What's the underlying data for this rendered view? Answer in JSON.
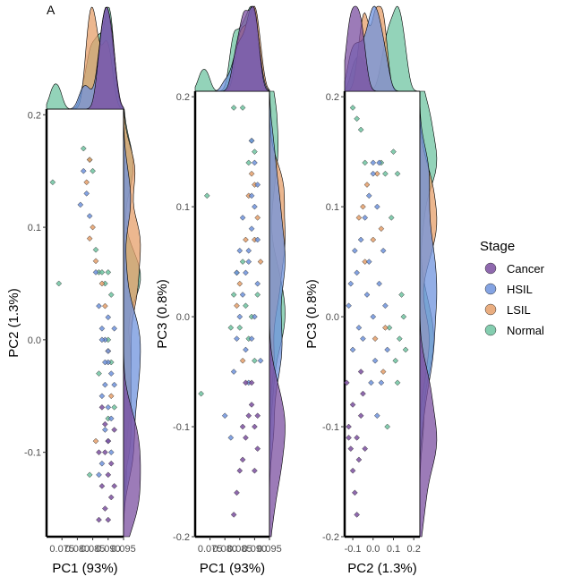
{
  "panel_tag": "A",
  "colors": {
    "Cancer": "#7b4fa0",
    "HSIL": "#6f93dd",
    "LSIL": "#e59f6a",
    "Normal": "#6fc4a1"
  },
  "legend": {
    "title": "Stage",
    "items": [
      "Cancer",
      "HSIL",
      "LSIL",
      "Normal"
    ]
  },
  "chart_data": [
    {
      "type": "scatter",
      "xlabel": "PC1 (93%)",
      "ylabel": "PC2 (1.3%)",
      "xlim": [
        0.07,
        0.095
      ],
      "ylim": [
        -0.175,
        0.205
      ],
      "xtick_labels": [
        "0.075",
        "0.080",
        "0.085",
        "0.090",
        "0.095"
      ],
      "xtick_values": [
        0.075,
        0.08,
        0.085,
        0.09,
        0.095
      ],
      "yticks": [
        -0.1,
        0.0,
        0.1,
        0.2
      ],
      "series": [
        {
          "name": "Cancer",
          "points": [
            [
              0.088,
              -0.06
            ],
            [
              0.089,
              -0.075
            ],
            [
              0.09,
              -0.09
            ],
            [
              0.091,
              -0.11
            ],
            [
              0.092,
              -0.13
            ],
            [
              0.089,
              -0.15
            ],
            [
              0.087,
              -0.16
            ],
            [
              0.09,
              -0.12
            ],
            [
              0.091,
              -0.14
            ],
            [
              0.092,
              -0.08
            ],
            [
              0.087,
              -0.1
            ],
            [
              0.088,
              -0.13
            ],
            [
              0.09,
              -0.16
            ],
            [
              0.089,
              -0.1
            ]
          ]
        },
        {
          "name": "HSIL",
          "points": [
            [
              0.082,
              0.15
            ],
            [
              0.083,
              0.13
            ],
            [
              0.081,
              0.12
            ],
            [
              0.084,
              0.11
            ],
            [
              0.086,
              0.06
            ],
            [
              0.087,
              0.03
            ],
            [
              0.088,
              0.01
            ],
            [
              0.089,
              0.0
            ],
            [
              0.09,
              -0.01
            ],
            [
              0.09,
              -0.02
            ],
            [
              0.091,
              -0.03
            ],
            [
              0.089,
              -0.04
            ],
            [
              0.088,
              -0.05
            ],
            [
              0.09,
              -0.06
            ],
            [
              0.091,
              -0.07
            ],
            [
              0.092,
              -0.04
            ],
            [
              0.089,
              -0.08
            ],
            [
              0.09,
              -0.09
            ],
            [
              0.088,
              -0.11
            ],
            [
              0.087,
              -0.12
            ],
            [
              0.091,
              -0.1
            ],
            [
              0.09,
              0.02
            ],
            [
              0.089,
              -0.02
            ],
            [
              0.088,
              0.0
            ],
            [
              0.092,
              0.01
            ]
          ]
        },
        {
          "name": "LSIL",
          "points": [
            [
              0.084,
              0.16
            ],
            [
              0.083,
              0.14
            ],
            [
              0.085,
              0.1
            ],
            [
              0.086,
              0.07
            ],
            [
              0.088,
              0.05
            ],
            [
              0.089,
              0.03
            ],
            [
              0.09,
              -0.01
            ],
            [
              0.091,
              -0.05
            ],
            [
              0.086,
              -0.09
            ],
            [
              0.084,
              0.09
            ]
          ]
        },
        {
          "name": "Normal",
          "points": [
            [
              0.072,
              0.14
            ],
            [
              0.074,
              0.05
            ],
            [
              0.082,
              0.17
            ],
            [
              0.084,
              0.16
            ],
            [
              0.085,
              0.15
            ],
            [
              0.086,
              0.08
            ],
            [
              0.087,
              0.06
            ],
            [
              0.088,
              0.06
            ],
            [
              0.089,
              0.05
            ],
            [
              0.09,
              0.06
            ],
            [
              0.091,
              0.04
            ],
            [
              0.09,
              0.0
            ],
            [
              0.092,
              -0.06
            ],
            [
              0.091,
              -0.02
            ],
            [
              0.084,
              -0.12
            ],
            [
              0.087,
              -0.03
            ],
            [
              0.09,
              -0.07
            ]
          ]
        }
      ]
    },
    {
      "type": "scatter",
      "xlabel": "PC1 (93%)",
      "ylabel": "PC3 (0.8%)",
      "xlim": [
        0.07,
        0.095
      ],
      "ylim": [
        -0.2,
        0.205
      ],
      "xtick_labels": [
        "0.075",
        "0.080",
        "0.085",
        "0.090",
        "0.095"
      ],
      "xtick_values": [
        0.075,
        0.08,
        0.085,
        0.09,
        0.095
      ],
      "yticks": [
        -0.2,
        -0.1,
        0.0,
        0.1,
        0.2
      ],
      "series": [
        {
          "name": "Cancer",
          "points": [
            [
              0.083,
              -0.18
            ],
            [
              0.084,
              -0.16
            ],
            [
              0.086,
              -0.13
            ],
            [
              0.087,
              -0.11
            ],
            [
              0.088,
              -0.09
            ],
            [
              0.089,
              -0.08
            ],
            [
              0.09,
              -0.1
            ],
            [
              0.091,
              -0.12
            ],
            [
              0.085,
              -0.14
            ],
            [
              0.087,
              -0.06
            ],
            [
              0.089,
              -0.06
            ],
            [
              0.091,
              -0.09
            ],
            [
              0.09,
              -0.14
            ],
            [
              0.086,
              -0.1
            ]
          ]
        },
        {
          "name": "HSIL",
          "points": [
            [
              0.08,
              -0.09
            ],
            [
              0.082,
              -0.11
            ],
            [
              0.083,
              -0.05
            ],
            [
              0.084,
              -0.02
            ],
            [
              0.085,
              0.0
            ],
            [
              0.086,
              0.02
            ],
            [
              0.087,
              0.04
            ],
            [
              0.088,
              0.06
            ],
            [
              0.089,
              0.08
            ],
            [
              0.09,
              0.1
            ],
            [
              0.091,
              0.12
            ],
            [
              0.09,
              0.14
            ],
            [
              0.089,
              0.16
            ],
            [
              0.088,
              0.05
            ],
            [
              0.087,
              -0.03
            ],
            [
              0.088,
              -0.06
            ],
            [
              0.089,
              -0.02
            ],
            [
              0.09,
              0.0
            ],
            [
              0.091,
              0.03
            ],
            [
              0.092,
              -0.04
            ],
            [
              0.086,
              0.09
            ],
            [
              0.085,
              0.06
            ],
            [
              0.084,
              0.04
            ],
            [
              0.091,
              0.07
            ],
            [
              0.089,
              0.11
            ]
          ]
        },
        {
          "name": "LSIL",
          "points": [
            [
              0.085,
              0.03
            ],
            [
              0.087,
              0.07
            ],
            [
              0.088,
              0.11
            ],
            [
              0.089,
              0.13
            ],
            [
              0.09,
              0.12
            ],
            [
              0.091,
              0.09
            ],
            [
              0.09,
              0.07
            ],
            [
              0.092,
              0.05
            ],
            [
              0.086,
              -0.04
            ],
            [
              0.084,
              0.01
            ]
          ]
        },
        {
          "name": "Normal",
          "points": [
            [
              0.074,
              0.11
            ],
            [
              0.072,
              -0.07
            ],
            [
              0.083,
              0.19
            ],
            [
              0.086,
              0.19
            ],
            [
              0.088,
              0.14
            ],
            [
              0.089,
              0.16
            ],
            [
              0.09,
              0.15
            ],
            [
              0.084,
              0.04
            ],
            [
              0.082,
              -0.01
            ],
            [
              0.085,
              -0.01
            ],
            [
              0.087,
              0.01
            ],
            [
              0.088,
              -0.02
            ],
            [
              0.089,
              0.0
            ],
            [
              0.091,
              0.02
            ],
            [
              0.09,
              -0.04
            ],
            [
              0.086,
              0.05
            ],
            [
              0.083,
              0.02
            ]
          ]
        }
      ]
    },
    {
      "type": "scatter",
      "xlabel": "PC2 (1.3%)",
      "ylabel": "PC3 (0.8%)",
      "xlim": [
        -0.14,
        0.23
      ],
      "ylim": [
        -0.2,
        0.205
      ],
      "xtick_labels": [
        "-0.1",
        "0.0",
        "0.1",
        "0.2"
      ],
      "xtick_values": [
        -0.1,
        0.0,
        0.1,
        0.2
      ],
      "yticks": [
        -0.2,
        -0.1,
        0.0,
        0.1,
        0.2
      ],
      "series": [
        {
          "name": "Cancer",
          "points": [
            [
              -0.13,
              -0.06
            ],
            [
              -0.12,
              -0.1
            ],
            [
              -0.11,
              -0.12
            ],
            [
              -0.1,
              -0.14
            ],
            [
              -0.09,
              -0.16
            ],
            [
              -0.1,
              -0.08
            ],
            [
              -0.08,
              -0.11
            ],
            [
              -0.07,
              -0.13
            ],
            [
              -0.06,
              -0.09
            ],
            [
              -0.05,
              -0.07
            ],
            [
              -0.08,
              -0.18
            ],
            [
              -0.04,
              -0.12
            ],
            [
              -0.06,
              -0.05
            ],
            [
              -0.12,
              -0.11
            ]
          ]
        },
        {
          "name": "HSIL",
          "points": [
            [
              -0.12,
              0.01
            ],
            [
              -0.1,
              -0.03
            ],
            [
              -0.08,
              0.04
            ],
            [
              -0.06,
              0.07
            ],
            [
              -0.04,
              0.09
            ],
            [
              -0.02,
              0.11
            ],
            [
              0.0,
              0.13
            ],
            [
              0.02,
              0.1
            ],
            [
              -0.05,
              -0.02
            ],
            [
              -0.03,
              0.02
            ],
            [
              0.0,
              0.0
            ],
            [
              0.01,
              -0.04
            ],
            [
              0.03,
              0.03
            ],
            [
              0.05,
              0.06
            ],
            [
              -0.07,
              -0.01
            ],
            [
              -0.09,
              0.06
            ],
            [
              0.04,
              -0.06
            ],
            [
              0.02,
              -0.09
            ],
            [
              -0.01,
              -0.06
            ],
            [
              0.06,
              0.01
            ],
            [
              0.07,
              -0.03
            ],
            [
              -0.11,
              0.03
            ],
            [
              0.0,
              0.14
            ],
            [
              0.03,
              0.14
            ],
            [
              -0.02,
              0.05
            ]
          ]
        },
        {
          "name": "LSIL",
          "points": [
            [
              -0.07,
              0.09
            ],
            [
              -0.05,
              0.1
            ],
            [
              -0.03,
              0.12
            ],
            [
              0.0,
              0.07
            ],
            [
              0.02,
              0.13
            ],
            [
              0.04,
              0.08
            ],
            [
              0.01,
              -0.02
            ],
            [
              0.05,
              -0.05
            ],
            [
              -0.04,
              0.05
            ],
            [
              0.06,
              -0.01
            ]
          ]
        },
        {
          "name": "Normal",
          "points": [
            [
              -0.1,
              0.19
            ],
            [
              -0.08,
              0.18
            ],
            [
              -0.06,
              0.17
            ],
            [
              -0.04,
              0.14
            ],
            [
              0.04,
              0.14
            ],
            [
              0.06,
              0.13
            ],
            [
              0.1,
              0.15
            ],
            [
              0.12,
              0.13
            ],
            [
              0.14,
              0.02
            ],
            [
              0.15,
              0.0
            ],
            [
              0.13,
              -0.02
            ],
            [
              0.08,
              -0.01
            ],
            [
              0.11,
              -0.04
            ],
            [
              0.09,
              0.09
            ],
            [
              0.16,
              -0.03
            ],
            [
              0.07,
              -0.1
            ],
            [
              0.12,
              -0.06
            ]
          ]
        }
      ]
    }
  ]
}
